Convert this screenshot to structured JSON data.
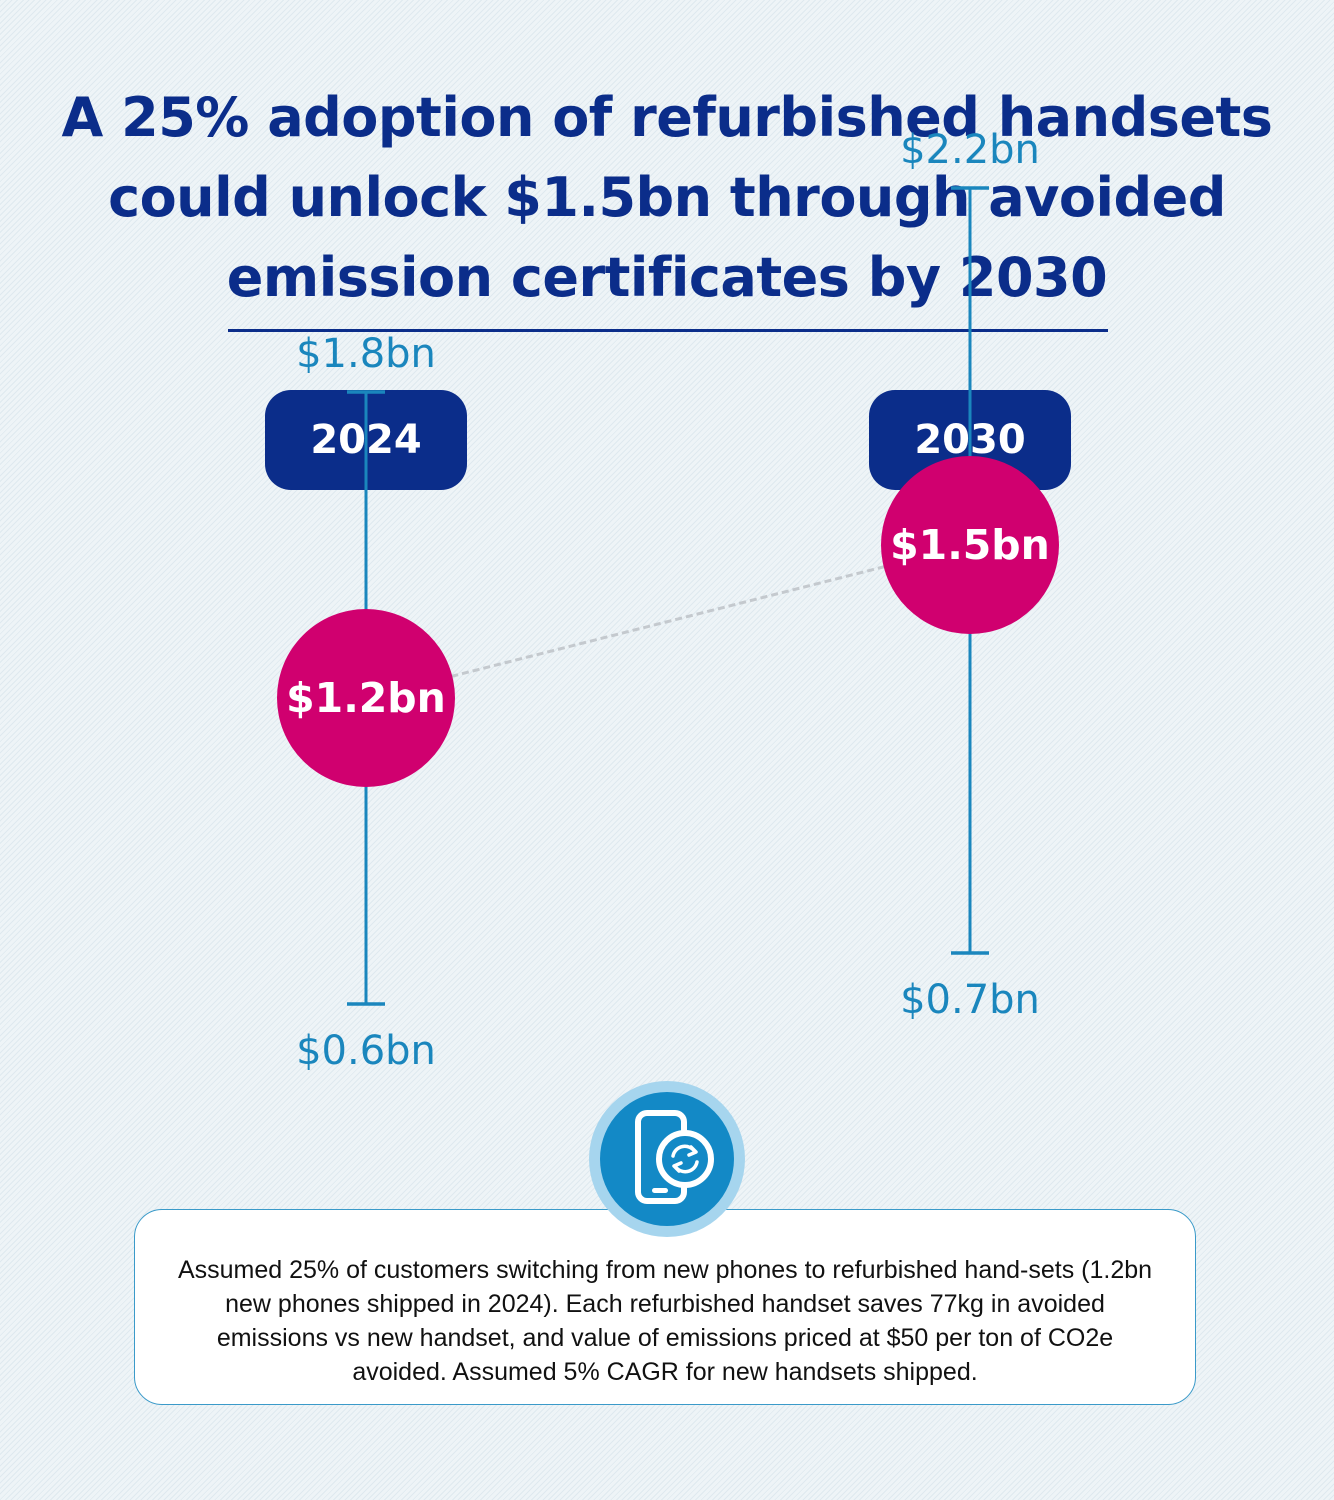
{
  "title": "A 25% adoption of refurbished handsets could unlock $1.5bn through avoided emission certificates by 2030",
  "note": "Assumed 25% of customers switching from new phones to refurbished hand-sets (1.2bn new phones shipped in 2024). Each refurbished handset saves 77kg in avoided emissions vs new handset, and value of emissions priced at $50 per ton of CO2e avoided. Assumed 5% CAGR for new handsets shipped.",
  "icon": "phone-refurbish-icon",
  "colors": {
    "navy": "#0b2d8a",
    "accent_blue": "#1a86bd",
    "magenta": "#d0006f",
    "connector": "#c4c9ce"
  },
  "chart_data": {
    "type": "scatter",
    "categories": [
      "2024",
      "2030"
    ],
    "points": [
      {
        "year": "2024",
        "value": 1.2,
        "low": 0.6,
        "high": 1.8,
        "label": "$1.2bn",
        "low_label": "$0.6bn",
        "high_label": "$1.8bn"
      },
      {
        "year": "2030",
        "value": 1.5,
        "low": 0.7,
        "high": 2.2,
        "label": "$1.5bn",
        "low_label": "$0.7bn",
        "high_label": "$2.2bn"
      }
    ],
    "unit": "$bn",
    "grid": false,
    "legend": false
  }
}
